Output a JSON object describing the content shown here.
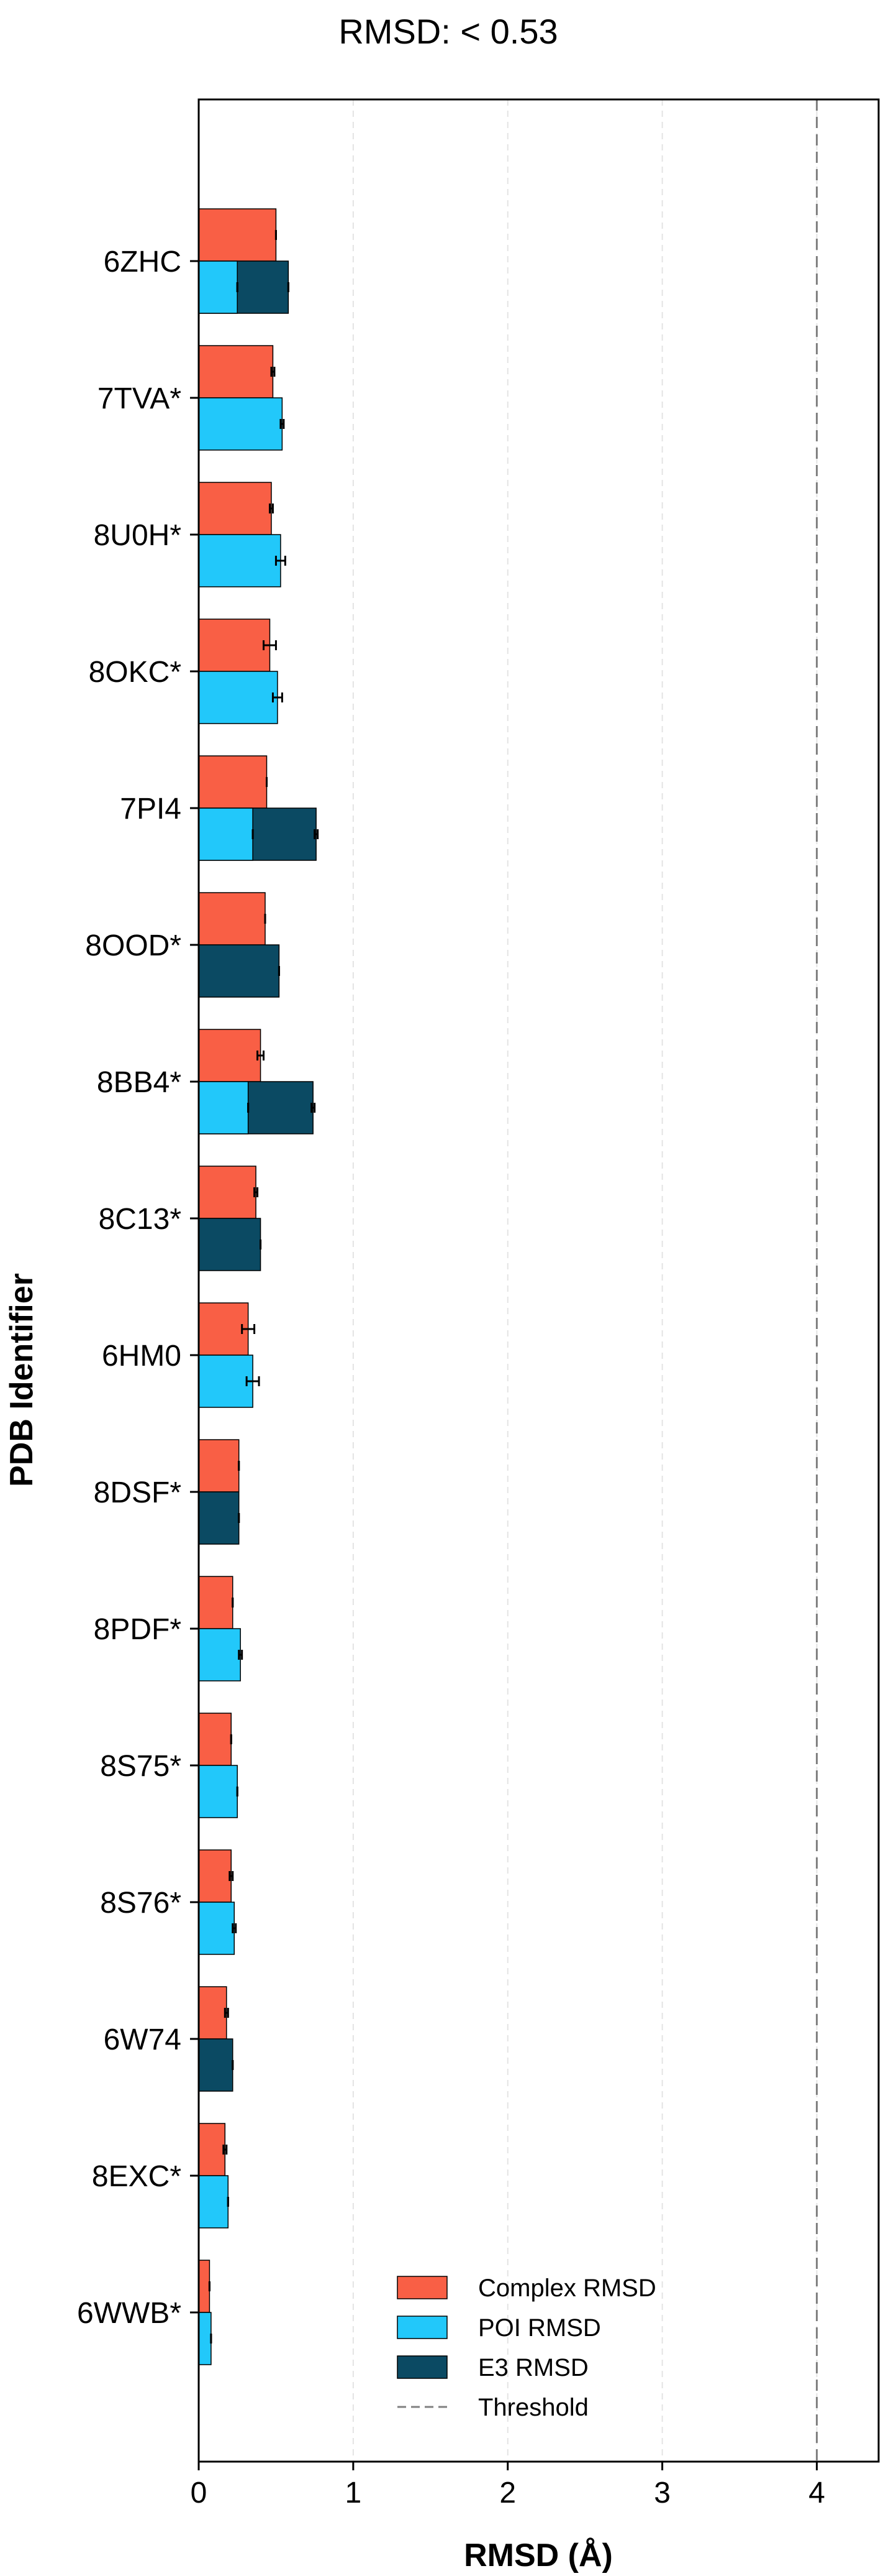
{
  "chart_data": {
    "type": "bar",
    "orientation": "horizontal",
    "title": "RMSD: < 0.53",
    "xlabel": "RMSD (Å)",
    "ylabel": "PDB Identifier",
    "xlim": [
      0,
      4.4
    ],
    "xticks": [
      0,
      1,
      2,
      3,
      4
    ],
    "grid": "x-dashed",
    "threshold": 4,
    "legend_position": "lower-right",
    "colors": {
      "complex": "#F95F45",
      "poi": "#22C8FA",
      "e3": "#0B4A63",
      "threshold": "#808080"
    },
    "legend": [
      {
        "label": "Complex RMSD",
        "key": "complex"
      },
      {
        "label": "POI RMSD",
        "key": "poi"
      },
      {
        "label": "E3 RMSD",
        "key": "e3"
      },
      {
        "label": "Threshold",
        "key": "threshold"
      }
    ],
    "categories": [
      "6ZHC",
      "7TVA*",
      "8U0H*",
      "8OKC*",
      "7PI4",
      "8OOD*",
      "8BB4*",
      "8C13*",
      "6HM0",
      "8DSF*",
      "8PDF*",
      "8S75*",
      "8S76*",
      "6W74",
      "8EXC*",
      "6WWB*"
    ],
    "series": [
      {
        "name": "Complex RMSD",
        "key": "complex",
        "values": [
          0.5,
          0.48,
          0.47,
          0.46,
          0.44,
          0.43,
          0.4,
          0.37,
          0.32,
          0.26,
          0.22,
          0.21,
          0.21,
          0.18,
          0.17,
          0.07
        ],
        "errors": [
          0.0,
          0.01,
          0.01,
          0.04,
          0.0,
          0.0,
          0.02,
          0.01,
          0.04,
          0.0,
          0.0,
          0.0,
          0.01,
          0.01,
          0.01,
          0.0
        ]
      },
      {
        "name": "POI RMSD",
        "key": "poi",
        "values": [
          0.25,
          0.54,
          0.53,
          0.51,
          0.35,
          null,
          0.32,
          null,
          0.35,
          null,
          0.27,
          0.25,
          0.23,
          null,
          0.19,
          0.08
        ],
        "errors": [
          0.0,
          0.01,
          0.03,
          0.03,
          0.0,
          null,
          0.0,
          null,
          0.04,
          null,
          0.01,
          0.0,
          0.01,
          null,
          0.0,
          0.0
        ]
      },
      {
        "name": "E3 RMSD",
        "key": "e3",
        "values": [
          0.58,
          null,
          null,
          null,
          0.76,
          0.52,
          0.74,
          0.4,
          null,
          0.26,
          null,
          null,
          null,
          0.22,
          null,
          null
        ],
        "errors": [
          0.0,
          null,
          null,
          null,
          0.01,
          0.0,
          0.01,
          0.0,
          null,
          0.0,
          null,
          null,
          null,
          0.0,
          null,
          null
        ]
      }
    ]
  }
}
